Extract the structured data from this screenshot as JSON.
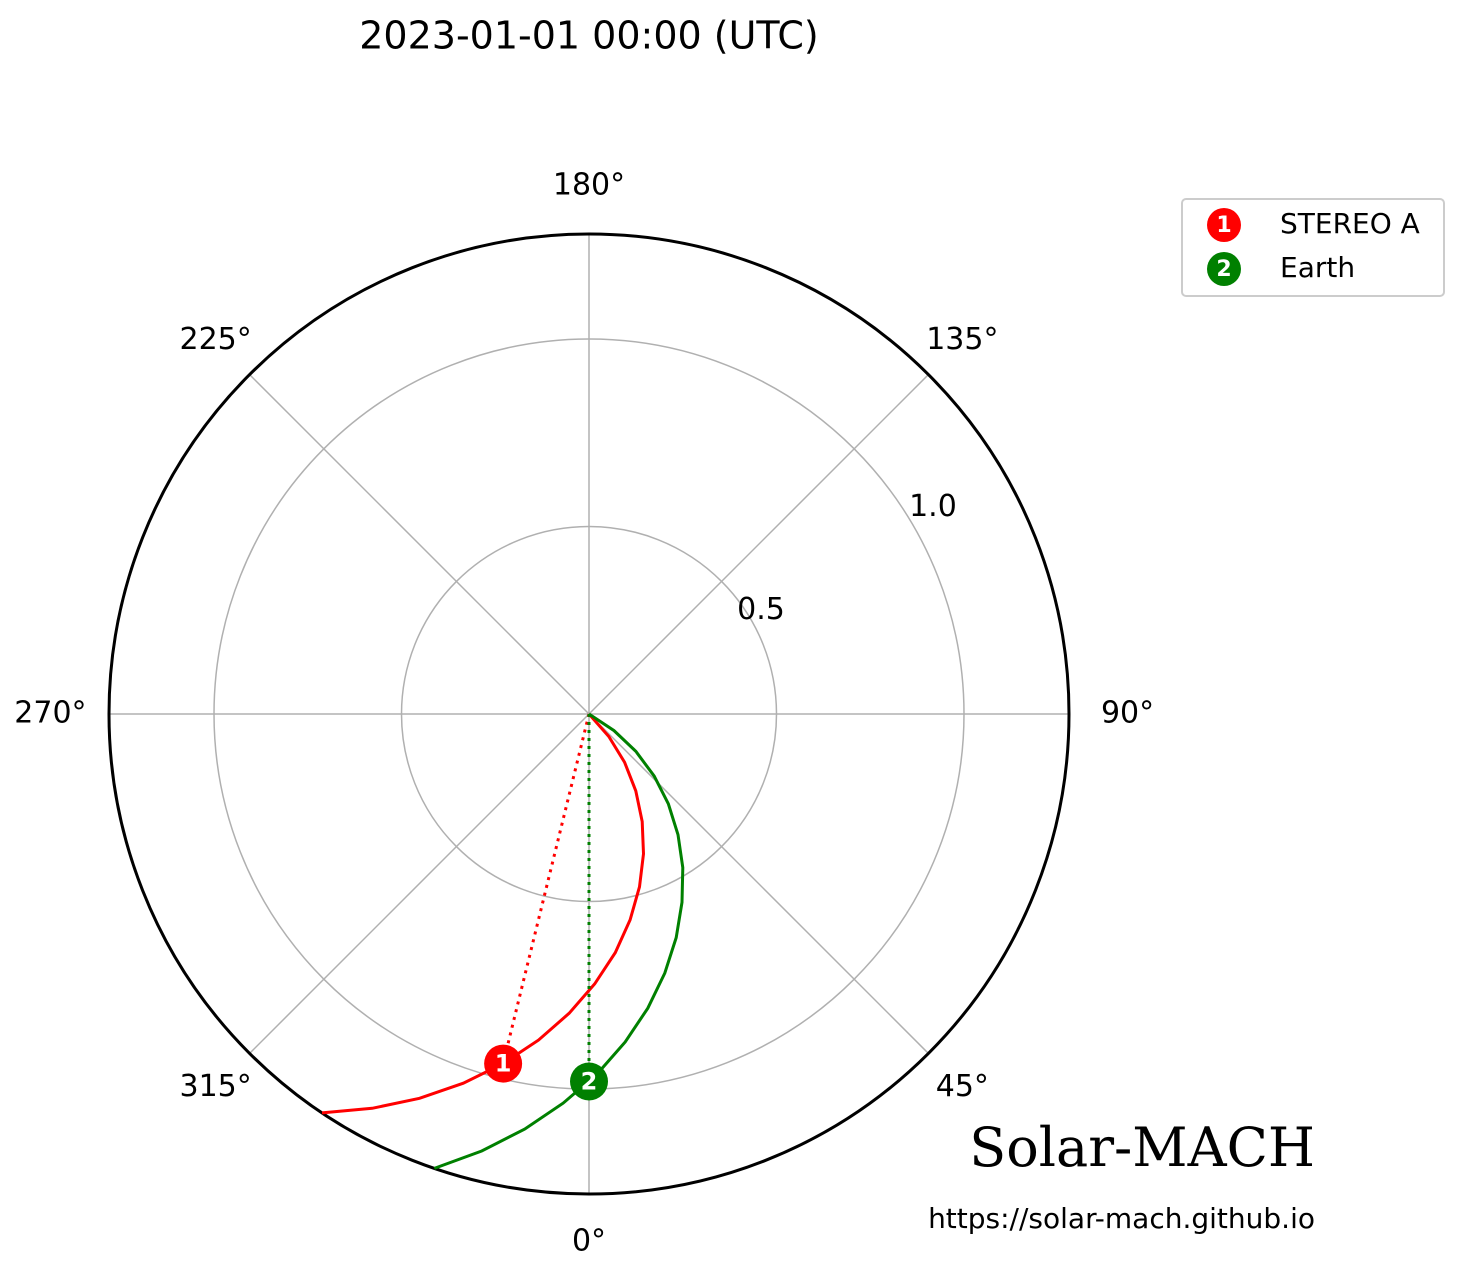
{
  "chart_data": {
    "type": "polar",
    "title": "2023-01-01 00:00 (UTC)",
    "rlim": [
      0,
      1.28
    ],
    "rticks": [
      0.5,
      {
        "value": 1,
        "label": "1.0"
      }
    ],
    "thetaticks": [
      {
        "value": 0,
        "label": "0°"
      },
      {
        "value": 45,
        "label": "45°"
      },
      {
        "value": 90,
        "label": "90°"
      },
      {
        "value": 135,
        "label": "135°"
      },
      {
        "value": 180,
        "label": "180°"
      },
      {
        "value": 225,
        "label": "225°"
      },
      {
        "value": 270,
        "label": "270°"
      },
      {
        "value": 315,
        "label": "315°"
      }
    ],
    "grid": true,
    "legend": "upper right",
    "series": [
      {
        "name": "STEREO A",
        "color": "#ff0000",
        "marker_label": "1",
        "theta": -13.8,
        "r": 0.96,
        "spiral": {
          "theta": [
            46.4,
            41.4,
            36.4,
            31.3,
            26.3,
            21.3,
            16.3,
            11.3,
            6.3,
            1.2,
            -3.8,
            -8.8,
            -13.8,
            -18.8,
            -23.8,
            -28.8,
            -33.8
          ],
          "r": [
            0,
            0.08,
            0.16,
            0.24,
            0.32,
            0.4,
            0.48,
            0.56,
            0.64,
            0.72,
            0.8,
            0.88,
            0.96,
            1.04,
            1.12,
            1.2,
            1.28
          ]
        }
      },
      {
        "name": "Earth",
        "color": "#008000",
        "marker_label": "2",
        "theta": 0,
        "r": 0.98,
        "spiral": {
          "theta": [
            61.4,
            56.4,
            51.4,
            46.4,
            41.4,
            36.4,
            31.4,
            26.3,
            21.3,
            16.3,
            11.3,
            6.3,
            1.3,
            -3.8,
            -8.8,
            -13.8,
            -18.8
          ],
          "r": [
            0,
            0.08,
            0.16,
            0.24,
            0.32,
            0.4,
            0.48,
            0.56,
            0.64,
            0.72,
            0.8,
            0.88,
            0.96,
            1.04,
            1.12,
            1.2,
            1.28
          ]
        }
      }
    ],
    "annotations": [
      "Solar-MACH",
      "https://solar-mach.github.io"
    ]
  }
}
